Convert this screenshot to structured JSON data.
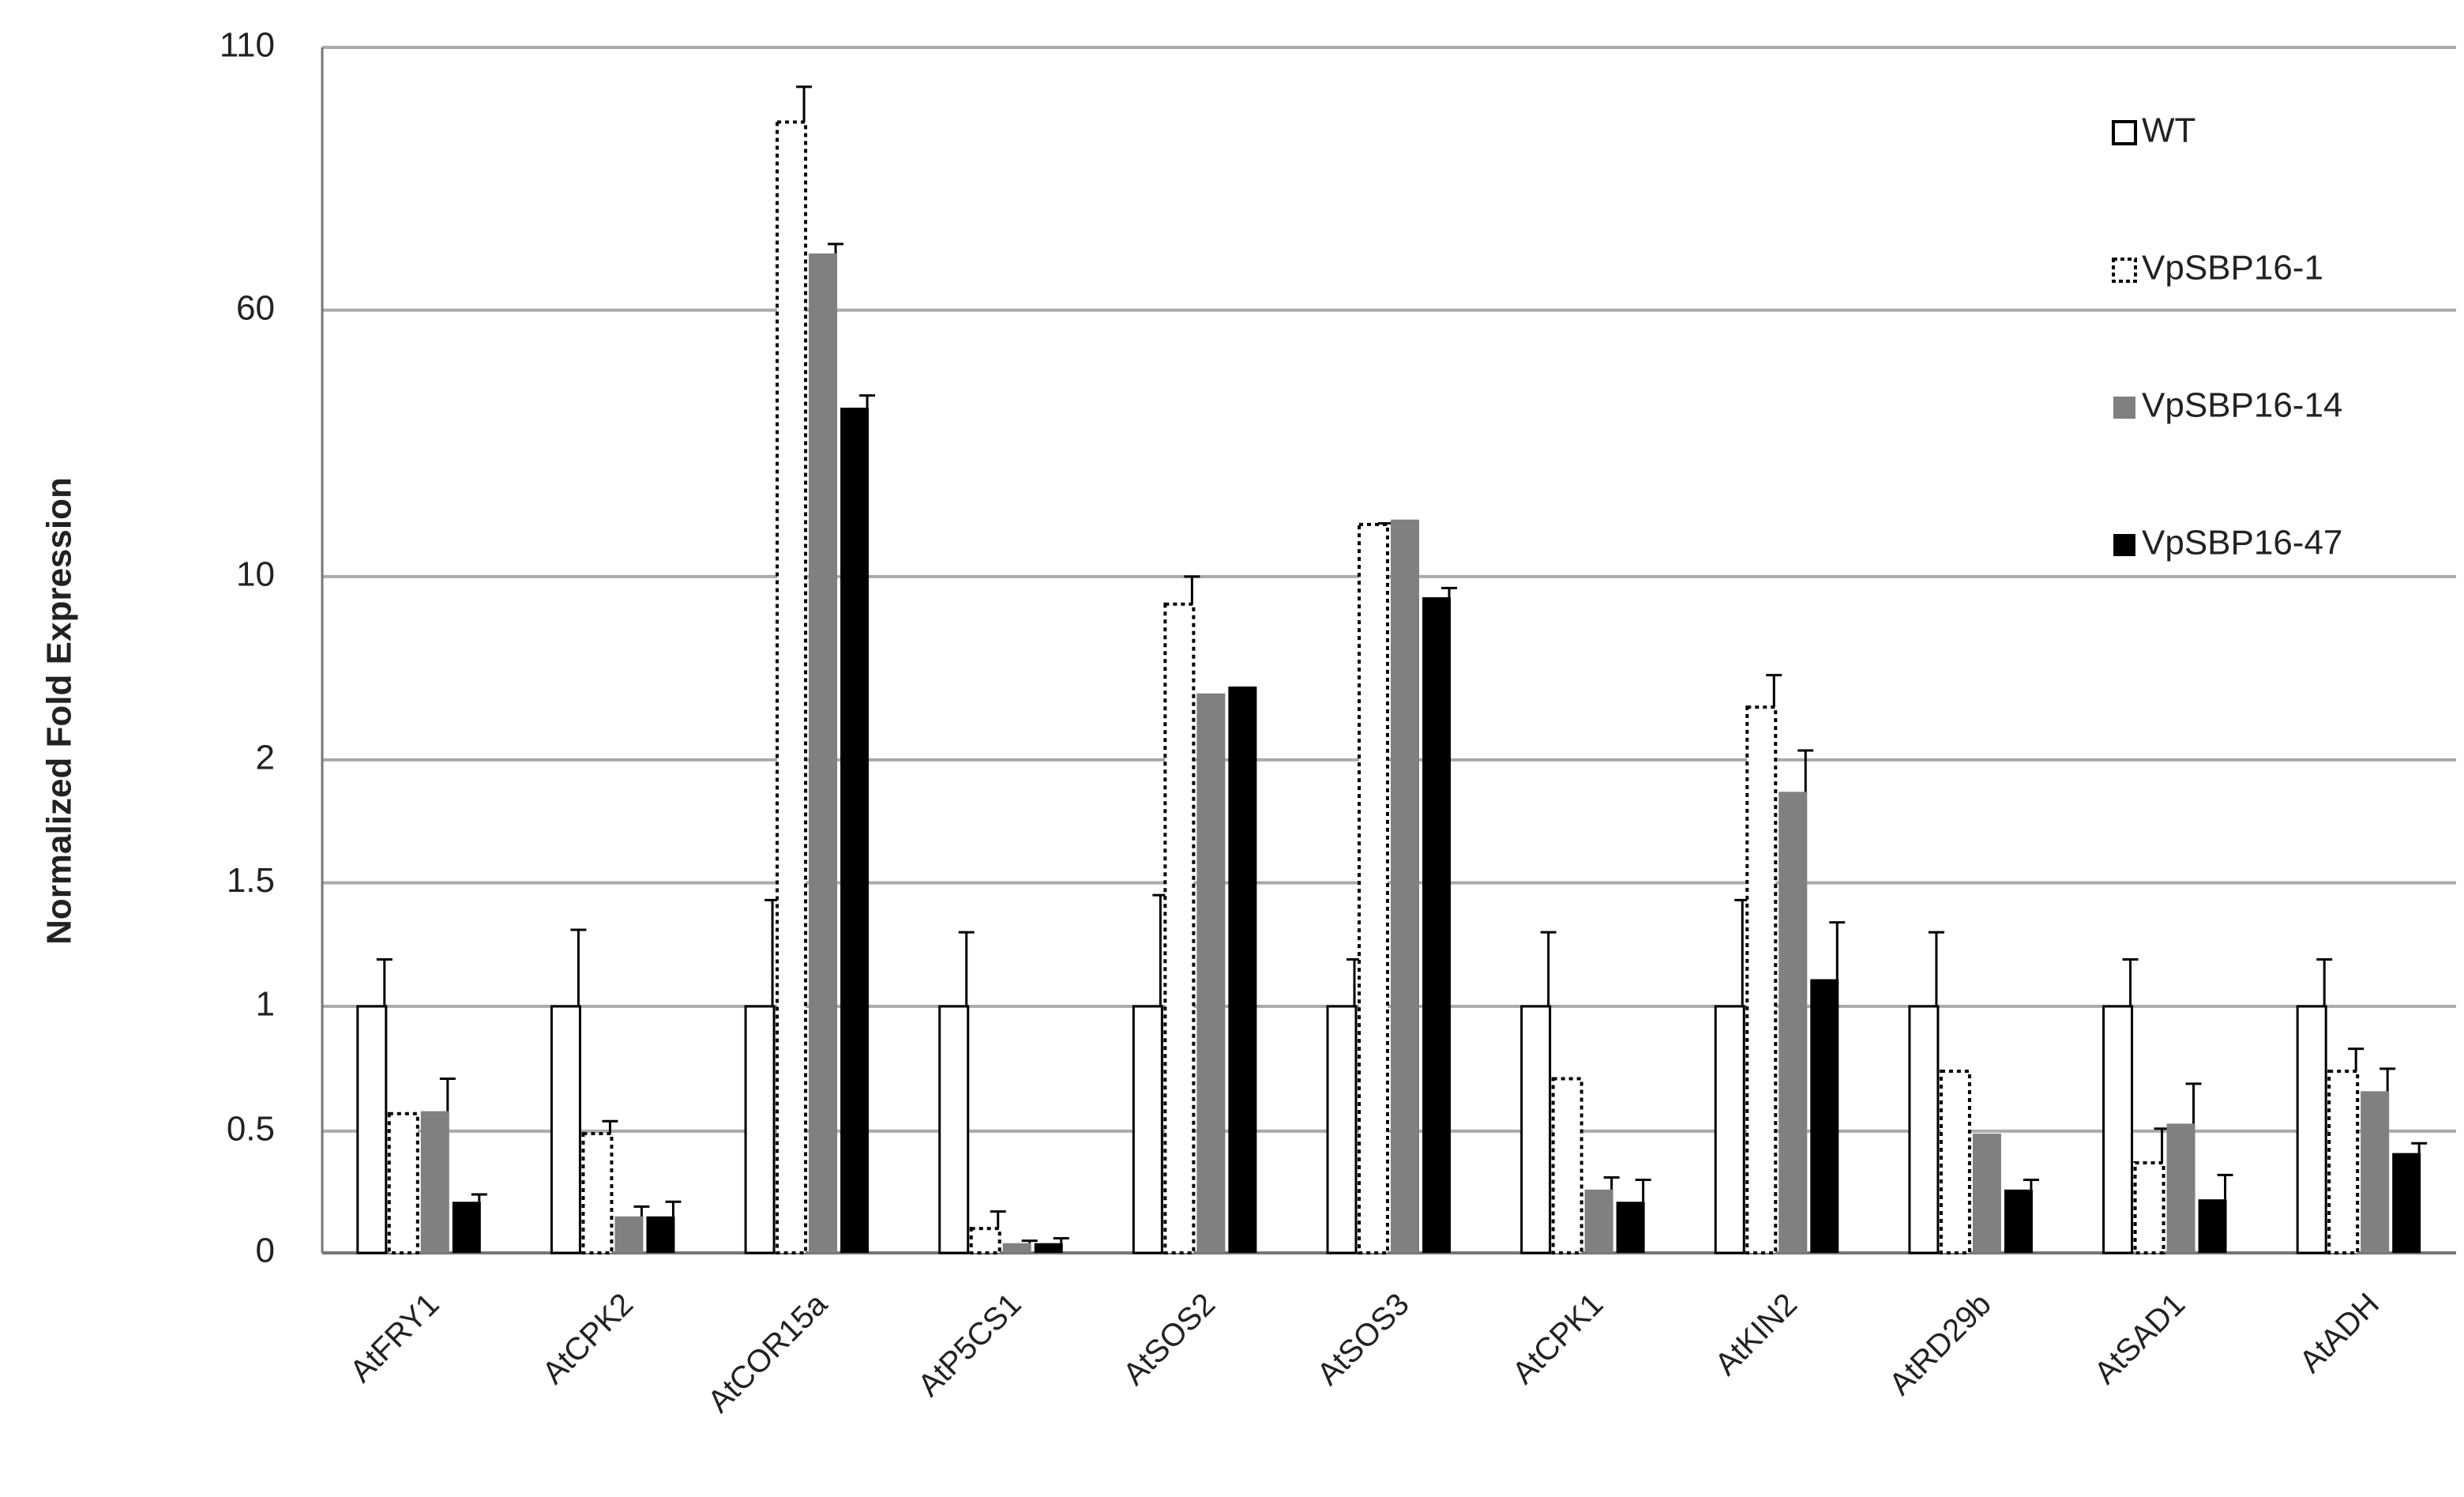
{
  "chart_data": {
    "type": "bar",
    "y_label": "Normalized Fold Expression",
    "categories": [
      "AtFRY1",
      "AtCPK2",
      "AtCOR15a",
      "AtP5CS1",
      "AtSOS2",
      "AtSOS3",
      "AtCPK1",
      "AtKIN2",
      "AtRD29b",
      "AtSAD1",
      "AtADH"
    ],
    "series": [
      {
        "name": "WT",
        "color": "#ffffff",
        "outline": "solid",
        "values": [
          1,
          1,
          1,
          1,
          1,
          1,
          1,
          1,
          1,
          1,
          1
        ],
        "errors": [
          0.19,
          0.31,
          0.43,
          0.3,
          0.45,
          0.19,
          0.3,
          0.43,
          0.3,
          0.19,
          0.19
        ]
      },
      {
        "name": "VpSBP16-1",
        "color": "#ffffff",
        "outline": "dotted",
        "values": [
          0.57,
          0.49,
          95.8,
          0.1,
          8.8,
          19.8,
          0.71,
          4.3,
          0.74,
          0.37,
          0.74
        ],
        "errors": [
          0,
          0.05,
          6.7,
          0.07,
          1.2,
          0.2,
          0,
          1.4,
          0,
          0.14,
          0.09
        ]
      },
      {
        "name": "VpSBP16-14",
        "color": "#808080",
        "outline": "none",
        "values": [
          0.58,
          0.15,
          70.8,
          0.04,
          4.9,
          20.7,
          0.26,
          1.87,
          0.49,
          0.53,
          0.66
        ],
        "errors": [
          0.13,
          0.04,
          1.8,
          0.01,
          0,
          0,
          0.05,
          0.54,
          0,
          0.16,
          0.09
        ]
      },
      {
        "name": "VpSBP16-47",
        "color": "#000000",
        "outline": "none",
        "values": [
          0.21,
          0.15,
          41.7,
          0.04,
          5.2,
          9.1,
          0.21,
          1.11,
          0.26,
          0.22,
          0.41
        ],
        "errors": [
          0.03,
          0.06,
          2.3,
          0.02,
          0,
          0.4,
          0.09,
          0.23,
          0.04,
          0.1,
          0.04
        ]
      }
    ],
    "ylim": [
      0,
      110
    ],
    "yticks": [
      0,
      0.5,
      1,
      1.5,
      2,
      10,
      60,
      110
    ],
    "y_scale": "segmented",
    "grid": true,
    "legend": "upper right"
  }
}
